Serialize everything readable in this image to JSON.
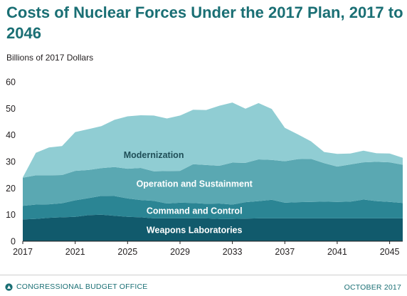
{
  "title": "Costs of Nuclear Forces Under the 2017 Plan, 2017 to 2046",
  "footer": {
    "organization": "CONGRESSIONAL BUDGET OFFICE",
    "date": "OCTOBER 2017",
    "logo_icon": "cbo-logo-icon"
  },
  "chart_data": {
    "type": "area",
    "stacked": true,
    "title": "Costs of Nuclear Forces Under the 2017 Plan, 2017 to 2046",
    "ylabel": "Billions of 2017 Dollars",
    "xlabel": "",
    "ylim": [
      0,
      60
    ],
    "yticks": [
      "0",
      "10",
      "20",
      "30",
      "40",
      "50",
      "60"
    ],
    "xticks": [
      "2017",
      "2021",
      "2025",
      "2029",
      "2033",
      "2037",
      "2041",
      "2045"
    ],
    "grid": false,
    "x": [
      2017,
      2018,
      2019,
      2020,
      2021,
      2022,
      2023,
      2024,
      2025,
      2026,
      2027,
      2028,
      2029,
      2030,
      2031,
      2032,
      2033,
      2034,
      2035,
      2036,
      2037,
      2038,
      2039,
      2040,
      2041,
      2042,
      2043,
      2044,
      2045,
      2046
    ],
    "series": [
      {
        "name": "Weapons Laboratories",
        "color": "#115a6c",
        "values": [
          8.2,
          8.4,
          8.8,
          9.0,
          9.2,
          9.8,
          10.0,
          9.6,
          9.2,
          9.0,
          8.6,
          8.6,
          8.6,
          8.6,
          8.6,
          8.4,
          8.4,
          8.5,
          8.6,
          8.6,
          8.6,
          8.6,
          8.6,
          8.6,
          8.6,
          8.6,
          8.6,
          8.6,
          8.6,
          8.6
        ]
      },
      {
        "name": "Command and Control",
        "color": "#2b8594",
        "values": [
          5.1,
          5.4,
          5.1,
          5.3,
          6.2,
          6.4,
          7.1,
          7.4,
          6.9,
          6.5,
          6.6,
          5.6,
          5.9,
          5.8,
          5.5,
          5.8,
          5.4,
          6.2,
          6.5,
          7.0,
          5.9,
          6.1,
          6.2,
          6.3,
          6.2,
          6.3,
          7.1,
          6.5,
          6.2,
          5.8
        ]
      },
      {
        "name": "Operation and Sustainment",
        "color": "#5aa8b2",
        "values": [
          10.6,
          11.0,
          10.9,
          10.6,
          11.1,
          10.6,
          10.4,
          10.9,
          11.2,
          12.1,
          11.1,
          12.2,
          12.0,
          14.6,
          14.6,
          14.2,
          15.8,
          14.8,
          15.7,
          15.0,
          15.6,
          16.2,
          16.2,
          14.5,
          13.3,
          14.0,
          14.0,
          14.8,
          14.9,
          14.4
        ]
      },
      {
        "name": "Modernization",
        "color": "#90cdd3",
        "values": [
          0.1,
          8.5,
          10.5,
          10.9,
          14.6,
          15.4,
          15.8,
          17.8,
          19.7,
          19.8,
          21.0,
          19.8,
          20.8,
          20.5,
          20.7,
          22.6,
          22.6,
          20.4,
          21.2,
          19.2,
          12.6,
          9.3,
          6.6,
          4.2,
          4.8,
          4.1,
          4.4,
          3.2,
          3.3,
          2.6
        ]
      }
    ]
  }
}
